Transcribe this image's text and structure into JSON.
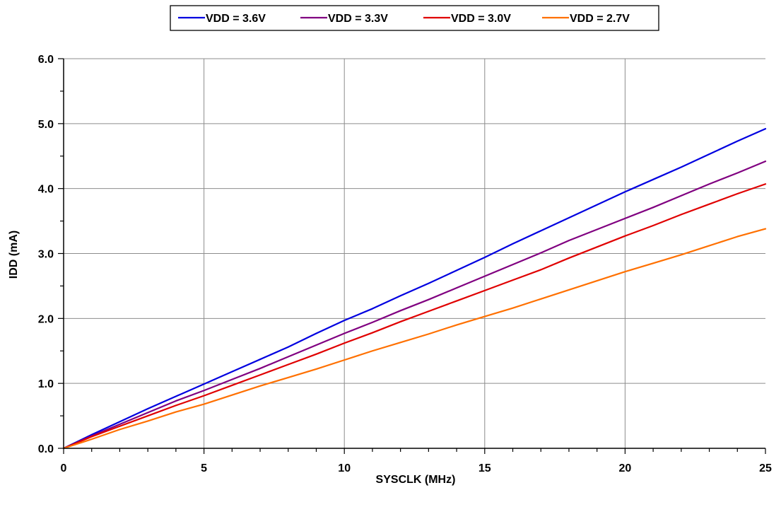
{
  "chart_data": {
    "type": "line",
    "title": "",
    "xlabel": "SYSCLK (MHz)",
    "ylabel": "IDD (mA)",
    "xlim": [
      0,
      25
    ],
    "ylim": [
      0,
      6
    ],
    "x_ticks": [
      "0",
      "5",
      "10",
      "15",
      "20",
      "25"
    ],
    "y_ticks": [
      "0.0",
      "1.0",
      "2.0",
      "3.0",
      "4.0",
      "5.0",
      "6.0"
    ],
    "grid": true,
    "legend_position": "top-center",
    "series": [
      {
        "name": "VDD = 3.6V",
        "color": "#0000e0",
        "x": [
          0,
          1,
          2,
          3,
          4,
          5,
          6,
          7,
          8,
          9,
          10,
          11,
          12,
          13,
          14,
          15,
          16,
          17,
          18,
          19,
          20,
          21,
          22,
          23,
          24,
          25
        ],
        "y": [
          0,
          0.21,
          0.41,
          0.61,
          0.8,
          0.99,
          1.18,
          1.37,
          1.56,
          1.77,
          1.97,
          2.15,
          2.35,
          2.54,
          2.74,
          2.94,
          3.15,
          3.35,
          3.55,
          3.75,
          3.95,
          4.14,
          4.33,
          4.53,
          4.73,
          4.92
        ]
      },
      {
        "name": "VDD = 3.3V",
        "color": "#800080",
        "x": [
          0,
          1,
          2,
          3,
          4,
          5,
          6,
          7,
          8,
          9,
          10,
          11,
          12,
          13,
          14,
          15,
          16,
          17,
          18,
          19,
          20,
          21,
          22,
          23,
          24,
          25
        ],
        "y": [
          0,
          0.19,
          0.37,
          0.55,
          0.73,
          0.89,
          1.06,
          1.23,
          1.41,
          1.59,
          1.77,
          1.94,
          2.12,
          2.29,
          2.47,
          2.65,
          2.83,
          3.01,
          3.2,
          3.37,
          3.54,
          3.71,
          3.89,
          4.07,
          4.24,
          4.42
        ]
      },
      {
        "name": "VDD = 3.0V",
        "color": "#e00000",
        "x": [
          0,
          1,
          2,
          3,
          4,
          5,
          6,
          7,
          8,
          9,
          10,
          11,
          12,
          13,
          14,
          15,
          16,
          17,
          18,
          19,
          20,
          21,
          22,
          23,
          24,
          25
        ],
        "y": [
          0,
          0.18,
          0.34,
          0.5,
          0.66,
          0.81,
          0.97,
          1.13,
          1.29,
          1.45,
          1.62,
          1.78,
          1.95,
          2.11,
          2.27,
          2.43,
          2.59,
          2.75,
          2.93,
          3.1,
          3.27,
          3.43,
          3.6,
          3.76,
          3.92,
          4.07
        ]
      },
      {
        "name": "VDD = 2.7V",
        "color": "#ff7000",
        "x": [
          0,
          1,
          2,
          3,
          4,
          5,
          6,
          7,
          8,
          9,
          10,
          11,
          12,
          13,
          14,
          15,
          16,
          17,
          18,
          19,
          20,
          21,
          22,
          23,
          24,
          25
        ],
        "y": [
          0,
          0.14,
          0.29,
          0.42,
          0.56,
          0.68,
          0.82,
          0.96,
          1.09,
          1.22,
          1.36,
          1.5,
          1.63,
          1.76,
          1.9,
          2.03,
          2.16,
          2.3,
          2.44,
          2.58,
          2.72,
          2.85,
          2.98,
          3.12,
          3.26,
          3.38
        ]
      }
    ]
  }
}
